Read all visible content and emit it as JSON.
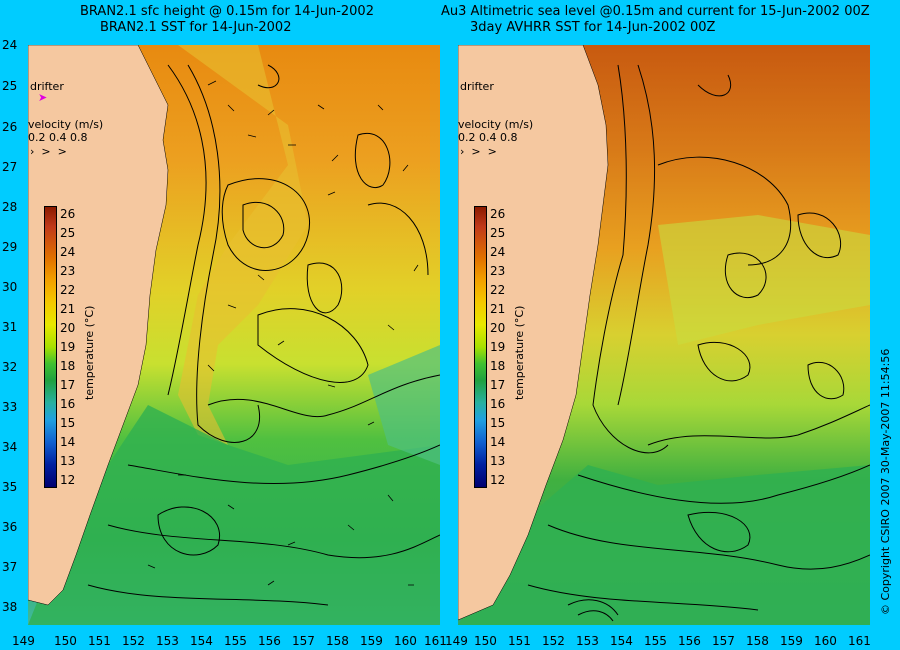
{
  "left_panel": {
    "title_line1": "BRAN2.1 sfc height @ 0.15m for 14-Jun-2002",
    "title_line2": "BRAN2.1 SST for 14-Jun-2002",
    "drifter": "drifter",
    "velocity_label": "velocity (m/s)",
    "velocity_scale": "0.2 0.4 0.8"
  },
  "right_panel": {
    "title_line1": "Au3 Altimetric sea level  @0.15m and current for 15-Jun-2002 00Z",
    "title_line2": "3day AVHRR SST for 14-Jun-2002 00Z",
    "drifter": "drifter",
    "velocity_label": "velocity (m/s)",
    "velocity_scale": "0.2 0.4 0.8"
  },
  "colorbar": {
    "label": "temperature (°C)",
    "ticks": [
      "26",
      "25",
      "24",
      "23",
      "22",
      "21",
      "20",
      "19",
      "18",
      "17",
      "16",
      "15",
      "14",
      "13",
      "12"
    ]
  },
  "lat_ticks": [
    "24",
    "25",
    "26",
    "27",
    "28",
    "29",
    "30",
    "31",
    "32",
    "33",
    "34",
    "35",
    "36",
    "37",
    "38"
  ],
  "lon_ticks": [
    "149",
    "150",
    "151",
    "152",
    "153",
    "154",
    "155",
    "156",
    "157",
    "158",
    "159",
    "160",
    "161"
  ],
  "copyright": "© Copyright CSIRO 2007    30-May-2007 11:54:56",
  "colors": {
    "background": "#00ccff",
    "land": "#f5c8a0",
    "warm": "#e89a20",
    "mid": "#d8e030",
    "cool": "#30b050"
  }
}
